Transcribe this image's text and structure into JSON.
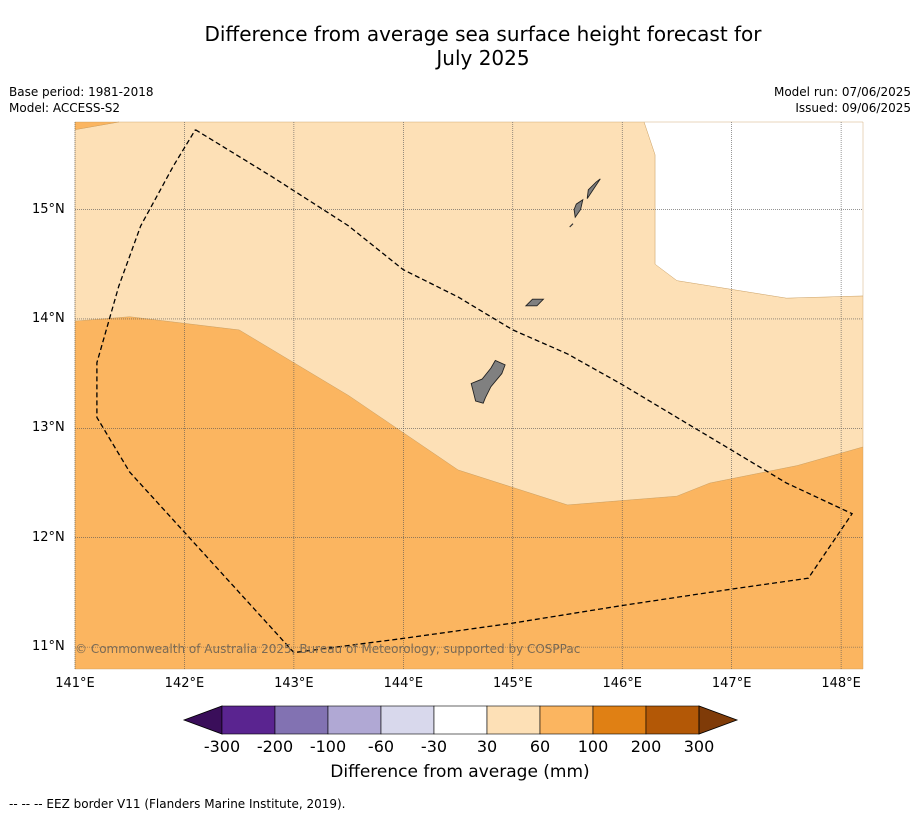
{
  "title_line1": "Difference from average sea surface height forecast for",
  "title_line2": "July 2025",
  "meta_left": {
    "base_period": "Base period: 1981-2018",
    "model": "Model: ACCESS-S2"
  },
  "meta_right": {
    "model_run": "Model run: 07/06/2025",
    "issued": "Issued: 09/06/2025"
  },
  "copyright": "© Commonwealth of Australia 2025, Bureau of Meteorology, supported by COSPPac",
  "footer": "--  --  -- EEZ border V11 (Flanders Marine Institute, 2019).",
  "map": {
    "lon_range": [
      141.0,
      148.2
    ],
    "lat_range": [
      10.8,
      15.8
    ],
    "lat_ticks": [
      {
        "value": 15,
        "label": "15°N"
      },
      {
        "value": 14,
        "label": "14°N"
      },
      {
        "value": 13,
        "label": "13°N"
      },
      {
        "value": 12,
        "label": "12°N"
      },
      {
        "value": 11,
        "label": "11°N"
      }
    ],
    "lon_ticks": [
      {
        "value": 141,
        "label": "141°E"
      },
      {
        "value": 142,
        "label": "142°E"
      },
      {
        "value": 143,
        "label": "143°E"
      },
      {
        "value": 144,
        "label": "144°E"
      },
      {
        "value": 145,
        "label": "145°E"
      },
      {
        "value": 146,
        "label": "146°E"
      },
      {
        "value": 147,
        "label": "147°E"
      },
      {
        "value": 148,
        "label": "148°E"
      }
    ],
    "gridlines": true,
    "regions": [
      {
        "class": "60 to 100 mm",
        "color": "#fbb560",
        "points": [
          [
            141,
            10.8
          ],
          [
            148.2,
            10.8
          ],
          [
            148.2,
            12.83
          ],
          [
            147.6,
            12.66
          ],
          [
            146.8,
            12.5
          ],
          [
            146.5,
            12.38
          ],
          [
            145.5,
            12.3
          ],
          [
            144.5,
            12.62
          ],
          [
            143.5,
            13.3
          ],
          [
            142.5,
            13.9
          ],
          [
            141.5,
            14.02
          ],
          [
            141,
            13.98
          ]
        ]
      },
      {
        "class": "30 to 60 mm",
        "color": "#fde0b6",
        "points": [
          [
            141,
            13.98
          ],
          [
            141.5,
            14.02
          ],
          [
            142.5,
            13.9
          ],
          [
            143.5,
            13.3
          ],
          [
            144.5,
            12.62
          ],
          [
            145.5,
            12.3
          ],
          [
            146.5,
            12.38
          ],
          [
            146.8,
            12.5
          ],
          [
            147.6,
            12.66
          ],
          [
            148.2,
            12.83
          ],
          [
            148.2,
            14.21
          ],
          [
            147.5,
            14.19
          ],
          [
            146.5,
            14.35
          ],
          [
            146.3,
            14.5
          ],
          [
            146.3,
            15.5
          ],
          [
            146.2,
            15.8
          ],
          [
            141.4,
            15.8
          ],
          [
            141,
            15.73
          ]
        ]
      },
      {
        "class": "60 to 100 mm (corner)",
        "color": "#fbb560",
        "points": [
          [
            141,
            15.8
          ],
          [
            141.4,
            15.8
          ],
          [
            141,
            15.73
          ]
        ]
      },
      {
        "class": "-30 to 30 mm",
        "color": "#ffffff",
        "points": [
          [
            146.2,
            15.8
          ],
          [
            146.3,
            15.5
          ],
          [
            146.3,
            14.5
          ],
          [
            146.5,
            14.35
          ],
          [
            147.5,
            14.19
          ],
          [
            148.2,
            14.21
          ],
          [
            148.2,
            15.8
          ]
        ]
      }
    ],
    "eez_border": [
      [
        142.1,
        15.73
      ],
      [
        142.8,
        15.3
      ],
      [
        143.5,
        14.85
      ],
      [
        144.0,
        14.45
      ],
      [
        144.5,
        14.2
      ],
      [
        145.0,
        13.9
      ],
      [
        145.5,
        13.68
      ],
      [
        146.0,
        13.4
      ],
      [
        146.5,
        13.1
      ],
      [
        147.0,
        12.8
      ],
      [
        147.5,
        12.5
      ],
      [
        148.1,
        12.22
      ],
      [
        147.7,
        11.63
      ],
      [
        147.0,
        11.53
      ],
      [
        146.0,
        11.38
      ],
      [
        145.0,
        11.22
      ],
      [
        144.0,
        11.08
      ],
      [
        143.0,
        10.95
      ],
      [
        142.5,
        11.5
      ],
      [
        141.5,
        12.6
      ],
      [
        141.2,
        13.1
      ],
      [
        141.2,
        13.6
      ],
      [
        141.4,
        14.3
      ],
      [
        141.6,
        14.85
      ],
      [
        141.9,
        15.4
      ],
      [
        142.1,
        15.73
      ]
    ],
    "islands": [
      {
        "name": "Guam",
        "color": "#808080",
        "points": [
          [
            144.62,
            13.41
          ],
          [
            144.72,
            13.45
          ],
          [
            144.8,
            13.55
          ],
          [
            144.84,
            13.62
          ],
          [
            144.93,
            13.58
          ],
          [
            144.9,
            13.5
          ],
          [
            144.8,
            13.38
          ],
          [
            144.75,
            13.28
          ],
          [
            144.73,
            13.23
          ],
          [
            144.66,
            13.25
          ],
          [
            144.64,
            13.33
          ]
        ]
      },
      {
        "name": "Rota",
        "color": "#808080",
        "points": [
          [
            145.12,
            14.12
          ],
          [
            145.18,
            14.18
          ],
          [
            145.28,
            14.18
          ],
          [
            145.22,
            14.12
          ]
        ]
      },
      {
        "name": "Tinian",
        "color": "#808080",
        "points": [
          [
            145.57,
            14.93
          ],
          [
            145.62,
            15.0
          ],
          [
            145.64,
            15.09
          ],
          [
            145.58,
            15.05
          ],
          [
            145.56,
            15.0
          ]
        ]
      },
      {
        "name": "Saipan",
        "color": "#808080",
        "points": [
          [
            145.68,
            15.1
          ],
          [
            145.72,
            15.16
          ],
          [
            145.8,
            15.28
          ],
          [
            145.76,
            15.25
          ],
          [
            145.69,
            15.18
          ]
        ]
      },
      {
        "name": "Aguijan",
        "color": "#808080",
        "points": [
          [
            145.52,
            14.84
          ],
          [
            145.55,
            14.87
          ]
        ]
      }
    ]
  },
  "colorbar": {
    "title": "Difference from average (mm)",
    "colors": [
      "#3a0e5a",
      "#5a2490",
      "#8272b2",
      "#b0a8d4",
      "#d8d8ec",
      "#ffffff",
      "#fde0b6",
      "#fbb560",
      "#e08014",
      "#b35806",
      "#7f3b08"
    ],
    "tick_labels": [
      "-300",
      "-200",
      "-100",
      "-60",
      "-30",
      "30",
      "60",
      "100",
      "200",
      "300"
    ]
  }
}
